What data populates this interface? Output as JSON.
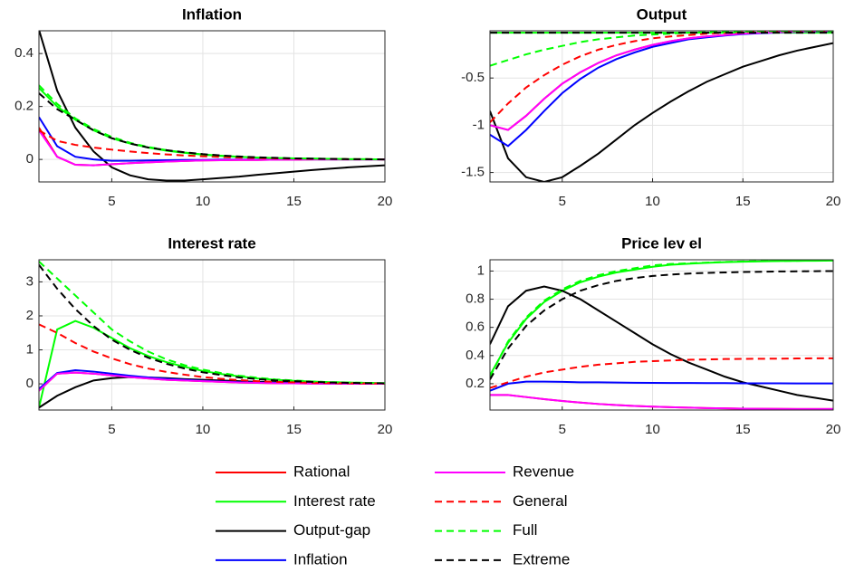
{
  "chart_data": [
    {
      "type": "line",
      "title": "Inflation",
      "x": [
        1,
        2,
        3,
        4,
        5,
        6,
        7,
        8,
        9,
        10,
        11,
        12,
        13,
        14,
        15,
        16,
        17,
        18,
        19,
        20
      ],
      "xlim": [
        1,
        20
      ],
      "xticks": [
        5,
        10,
        15,
        20
      ],
      "ylim": [
        -0.085,
        0.486
      ],
      "yticks": [
        0,
        0.2,
        0.4
      ],
      "grid": true,
      "series": [
        {
          "name": "Rational",
          "color": "#ff0000",
          "linestyle": "solid",
          "values": [
            0.12,
            0.01,
            -0.02,
            -0.022,
            -0.018,
            -0.014,
            -0.011,
            -0.008,
            -0.006,
            -0.004,
            -0.003,
            -0.002,
            -0.002,
            -0.001,
            -0.001,
            0,
            0,
            0,
            0,
            0
          ]
        },
        {
          "name": "Interest rate",
          "color": "#00ff00",
          "linestyle": "solid",
          "values": [
            0.27,
            0.2,
            0.15,
            0.11,
            0.08,
            0.06,
            0.045,
            0.033,
            0.025,
            0.018,
            0.013,
            0.01,
            0.007,
            0.005,
            0.004,
            0.003,
            0.002,
            0.001,
            0.001,
            0
          ]
        },
        {
          "name": "Output-gap",
          "color": "#000000",
          "linestyle": "solid",
          "values": [
            0.49,
            0.26,
            0.12,
            0.03,
            -0.03,
            -0.06,
            -0.075,
            -0.08,
            -0.08,
            -0.075,
            -0.07,
            -0.065,
            -0.058,
            -0.052,
            -0.046,
            -0.04,
            -0.035,
            -0.03,
            -0.026,
            -0.022
          ]
        },
        {
          "name": "Inflation",
          "color": "#0000ff",
          "linestyle": "solid",
          "values": [
            0.16,
            0.05,
            0.01,
            0,
            -0.005,
            -0.005,
            -0.004,
            -0.003,
            -0.002,
            -0.002,
            -0.001,
            -0.001,
            -0.001,
            0,
            0,
            0,
            0,
            0,
            0,
            0
          ]
        },
        {
          "name": "Revenue",
          "color": "#ff00ff",
          "linestyle": "solid",
          "values": [
            0.11,
            0.01,
            -0.02,
            -0.022,
            -0.018,
            -0.014,
            -0.011,
            -0.008,
            -0.006,
            -0.004,
            -0.003,
            -0.002,
            -0.002,
            -0.001,
            -0.001,
            0,
            0,
            0,
            0,
            0
          ]
        },
        {
          "name": "General",
          "color": "#ff0000",
          "linestyle": "dashed",
          "values": [
            0.11,
            0.07,
            0.055,
            0.045,
            0.037,
            0.03,
            0.024,
            0.019,
            0.015,
            0.012,
            0.009,
            0.007,
            0.005,
            0.004,
            0.003,
            0.002,
            0.002,
            0.001,
            0.001,
            0
          ]
        },
        {
          "name": "Full",
          "color": "#00ff00",
          "linestyle": "dashed",
          "values": [
            0.28,
            0.21,
            0.155,
            0.115,
            0.085,
            0.063,
            0.047,
            0.035,
            0.026,
            0.019,
            0.014,
            0.01,
            0.007,
            0.005,
            0.004,
            0.003,
            0.002,
            0.001,
            0.001,
            0
          ]
        },
        {
          "name": "Extreme",
          "color": "#000000",
          "linestyle": "dashed",
          "values": [
            0.25,
            0.19,
            0.15,
            0.11,
            0.08,
            0.06,
            0.045,
            0.035,
            0.027,
            0.02,
            0.015,
            0.011,
            0.008,
            0.006,
            0.004,
            0.003,
            0.002,
            0.001,
            0.001,
            0
          ]
        }
      ]
    },
    {
      "type": "line",
      "title": "Output",
      "x": [
        1,
        2,
        3,
        4,
        5,
        6,
        7,
        8,
        9,
        10,
        11,
        12,
        13,
        14,
        15,
        16,
        17,
        18,
        19,
        20
      ],
      "xlim": [
        1,
        20
      ],
      "xticks": [
        5,
        10,
        15,
        20
      ],
      "ylim": [
        -1.6,
        0.0
      ],
      "yticks": [
        -1.5,
        -1,
        -0.5
      ],
      "grid": true,
      "series": [
        {
          "name": "Rational",
          "color": "#ff0000",
          "linestyle": "solid",
          "values": [
            -1.0,
            -1.05,
            -0.9,
            -0.72,
            -0.56,
            -0.44,
            -0.34,
            -0.26,
            -0.2,
            -0.15,
            -0.11,
            -0.08,
            -0.06,
            -0.045,
            -0.03,
            -0.02,
            -0.015,
            -0.01,
            -0.005,
            0
          ]
        },
        {
          "name": "Interest rate",
          "color": "#00ff00",
          "linestyle": "solid",
          "values": [
            -0.02,
            -0.02,
            -0.02,
            -0.02,
            -0.02,
            -0.02,
            -0.02,
            -0.02,
            -0.02,
            -0.02,
            -0.02,
            -0.02,
            -0.02,
            -0.02,
            -0.02,
            -0.02,
            -0.02,
            -0.02,
            -0.02,
            -0.02
          ]
        },
        {
          "name": "Output-gap",
          "color": "#000000",
          "linestyle": "solid",
          "values": [
            -0.85,
            -1.35,
            -1.55,
            -1.6,
            -1.55,
            -1.43,
            -1.3,
            -1.15,
            -1.0,
            -0.87,
            -0.75,
            -0.64,
            -0.54,
            -0.46,
            -0.38,
            -0.32,
            -0.26,
            -0.21,
            -0.17,
            -0.13
          ]
        },
        {
          "name": "Inflation",
          "color": "#0000ff",
          "linestyle": "solid",
          "values": [
            -1.1,
            -1.22,
            -1.05,
            -0.85,
            -0.66,
            -0.51,
            -0.39,
            -0.3,
            -0.23,
            -0.17,
            -0.13,
            -0.09,
            -0.07,
            -0.05,
            -0.035,
            -0.025,
            -0.018,
            -0.012,
            -0.008,
            -0.004
          ]
        },
        {
          "name": "Revenue",
          "color": "#ff00ff",
          "linestyle": "solid",
          "values": [
            -1.0,
            -1.05,
            -0.9,
            -0.72,
            -0.56,
            -0.44,
            -0.34,
            -0.26,
            -0.2,
            -0.15,
            -0.11,
            -0.08,
            -0.06,
            -0.045,
            -0.03,
            -0.02,
            -0.015,
            -0.01,
            -0.005,
            0
          ]
        },
        {
          "name": "General",
          "color": "#ff0000",
          "linestyle": "dashed",
          "values": [
            -0.97,
            -0.77,
            -0.6,
            -0.47,
            -0.36,
            -0.27,
            -0.2,
            -0.15,
            -0.11,
            -0.08,
            -0.06,
            -0.045,
            -0.03,
            -0.022,
            -0.015,
            -0.01,
            -0.007,
            -0.005,
            -0.003,
            -0.002
          ]
        },
        {
          "name": "Full",
          "color": "#00ff00",
          "linestyle": "dashed",
          "values": [
            -0.37,
            -0.31,
            -0.25,
            -0.2,
            -0.16,
            -0.12,
            -0.09,
            -0.07,
            -0.05,
            -0.04,
            -0.03,
            -0.02,
            -0.015,
            -0.01,
            -0.008,
            -0.006,
            -0.004,
            -0.003,
            -0.002,
            -0.001
          ]
        },
        {
          "name": "Extreme",
          "color": "#000000",
          "linestyle": "dashed",
          "values": [
            -0.02,
            -0.02,
            -0.02,
            -0.02,
            -0.02,
            -0.02,
            -0.02,
            -0.02,
            -0.02,
            -0.02,
            -0.02,
            -0.02,
            -0.02,
            -0.02,
            -0.02,
            -0.02,
            -0.02,
            -0.02,
            -0.02,
            -0.02
          ]
        }
      ]
    },
    {
      "type": "line",
      "title": "Interest rate",
      "x": [
        1,
        2,
        3,
        4,
        5,
        6,
        7,
        8,
        9,
        10,
        11,
        12,
        13,
        14,
        15,
        16,
        17,
        18,
        19,
        20
      ],
      "xlim": [
        1,
        20
      ],
      "xticks": [
        5,
        10,
        15,
        20
      ],
      "ylim": [
        -0.77,
        3.65
      ],
      "yticks": [
        0,
        1,
        2,
        3
      ],
      "grid": true,
      "series": [
        {
          "name": "Rational",
          "color": "#ff0000",
          "linestyle": "solid",
          "values": [
            -0.2,
            0.3,
            0.33,
            0.3,
            0.25,
            0.2,
            0.16,
            0.12,
            0.1,
            0.08,
            0.06,
            0.04,
            0.03,
            0.02,
            0.015,
            0.01,
            0.008,
            0.005,
            0.003,
            0.002
          ]
        },
        {
          "name": "Interest rate",
          "color": "#00ff00",
          "linestyle": "solid",
          "values": [
            -0.7,
            1.6,
            1.85,
            1.65,
            1.35,
            1.05,
            0.82,
            0.64,
            0.5,
            0.38,
            0.29,
            0.22,
            0.16,
            0.12,
            0.09,
            0.07,
            0.05,
            0.04,
            0.03,
            0.02
          ]
        },
        {
          "name": "Output-gap",
          "color": "#000000",
          "linestyle": "solid",
          "values": [
            -0.7,
            -0.35,
            -0.1,
            0.1,
            0.17,
            0.2,
            0.19,
            0.17,
            0.14,
            0.12,
            0.1,
            0.08,
            0.06,
            0.05,
            0.04,
            0.03,
            0.02,
            0.015,
            0.01,
            0.01
          ]
        },
        {
          "name": "Inflation",
          "color": "#0000ff",
          "linestyle": "solid",
          "values": [
            -0.15,
            0.32,
            0.4,
            0.36,
            0.3,
            0.24,
            0.19,
            0.15,
            0.12,
            0.09,
            0.07,
            0.05,
            0.04,
            0.03,
            0.02,
            0.015,
            0.01,
            0.008,
            0.005,
            0.003
          ]
        },
        {
          "name": "Revenue",
          "color": "#ff00ff",
          "linestyle": "solid",
          "values": [
            -0.2,
            0.3,
            0.33,
            0.3,
            0.25,
            0.2,
            0.16,
            0.12,
            0.1,
            0.08,
            0.06,
            0.04,
            0.03,
            0.02,
            0.015,
            0.01,
            0.008,
            0.005,
            0.003,
            0.002
          ]
        },
        {
          "name": "General",
          "color": "#ff0000",
          "linestyle": "dashed",
          "values": [
            1.75,
            1.5,
            1.2,
            0.95,
            0.75,
            0.58,
            0.45,
            0.35,
            0.27,
            0.2,
            0.15,
            0.11,
            0.08,
            0.06,
            0.045,
            0.033,
            0.025,
            0.018,
            0.013,
            0.01
          ]
        },
        {
          "name": "Full",
          "color": "#00ff00",
          "linestyle": "dashed",
          "values": [
            3.6,
            3.1,
            2.6,
            2.1,
            1.6,
            1.25,
            0.95,
            0.72,
            0.55,
            0.42,
            0.32,
            0.24,
            0.18,
            0.13,
            0.1,
            0.07,
            0.05,
            0.04,
            0.03,
            0.02
          ]
        },
        {
          "name": "Extreme",
          "color": "#000000",
          "linestyle": "dashed",
          "values": [
            3.5,
            2.8,
            2.2,
            1.7,
            1.3,
            1.0,
            0.77,
            0.59,
            0.45,
            0.34,
            0.26,
            0.19,
            0.14,
            0.1,
            0.08,
            0.06,
            0.04,
            0.03,
            0.02,
            0.015
          ]
        }
      ]
    },
    {
      "type": "line",
      "title": "Price lev el",
      "x": [
        1,
        2,
        3,
        4,
        5,
        6,
        7,
        8,
        9,
        10,
        11,
        12,
        13,
        14,
        15,
        16,
        17,
        18,
        19,
        20
      ],
      "xlim": [
        1,
        20
      ],
      "xticks": [
        5,
        10,
        15,
        20
      ],
      "ylim": [
        0.013,
        1.08
      ],
      "yticks": [
        0.2,
        0.4,
        0.6,
        0.8,
        1
      ],
      "grid": true,
      "series": [
        {
          "name": "Rational",
          "color": "#ff0000",
          "linestyle": "solid",
          "values": [
            0.12,
            0.12,
            0.105,
            0.09,
            0.077,
            0.066,
            0.056,
            0.048,
            0.042,
            0.037,
            0.033,
            0.03,
            0.027,
            0.025,
            0.023,
            0.022,
            0.021,
            0.02,
            0.02,
            0.02
          ]
        },
        {
          "name": "Interest rate",
          "color": "#00ff00",
          "linestyle": "solid",
          "values": [
            0.26,
            0.49,
            0.66,
            0.78,
            0.86,
            0.92,
            0.96,
            0.99,
            1.01,
            1.03,
            1.045,
            1.052,
            1.058,
            1.063,
            1.066,
            1.069,
            1.071,
            1.072,
            1.073,
            1.074
          ]
        },
        {
          "name": "Output-gap",
          "color": "#000000",
          "linestyle": "solid",
          "values": [
            0.48,
            0.75,
            0.86,
            0.89,
            0.86,
            0.8,
            0.72,
            0.64,
            0.56,
            0.48,
            0.41,
            0.35,
            0.3,
            0.25,
            0.21,
            0.18,
            0.15,
            0.12,
            0.1,
            0.08
          ]
        },
        {
          "name": "Inflation",
          "color": "#0000ff",
          "linestyle": "solid",
          "values": [
            0.15,
            0.2,
            0.215,
            0.215,
            0.213,
            0.21,
            0.21,
            0.208,
            0.207,
            0.206,
            0.205,
            0.205,
            0.204,
            0.204,
            0.203,
            0.203,
            0.203,
            0.202,
            0.202,
            0.202
          ]
        },
        {
          "name": "Revenue",
          "color": "#ff00ff",
          "linestyle": "solid",
          "values": [
            0.12,
            0.12,
            0.105,
            0.09,
            0.077,
            0.066,
            0.056,
            0.048,
            0.042,
            0.037,
            0.033,
            0.03,
            0.027,
            0.025,
            0.023,
            0.022,
            0.021,
            0.02,
            0.02,
            0.02
          ]
        },
        {
          "name": "General",
          "color": "#ff0000",
          "linestyle": "dashed",
          "values": [
            0.17,
            0.21,
            0.25,
            0.28,
            0.3,
            0.32,
            0.335,
            0.345,
            0.355,
            0.36,
            0.365,
            0.37,
            0.372,
            0.375,
            0.376,
            0.377,
            0.378,
            0.379,
            0.38,
            0.38
          ]
        },
        {
          "name": "Full",
          "color": "#00ff00",
          "linestyle": "dashed",
          "values": [
            0.25,
            0.5,
            0.67,
            0.79,
            0.87,
            0.93,
            0.97,
            1.0,
            1.02,
            1.04,
            1.05,
            1.055,
            1.06,
            1.065,
            1.068,
            1.07,
            1.072,
            1.073,
            1.074,
            1.075
          ]
        },
        {
          "name": "Extreme",
          "color": "#000000",
          "linestyle": "dashed",
          "values": [
            0.23,
            0.45,
            0.61,
            0.72,
            0.8,
            0.86,
            0.9,
            0.93,
            0.95,
            0.965,
            0.975,
            0.982,
            0.987,
            0.99,
            0.993,
            0.995,
            0.997,
            0.998,
            0.999,
            1.0
          ]
        }
      ]
    }
  ]
}
